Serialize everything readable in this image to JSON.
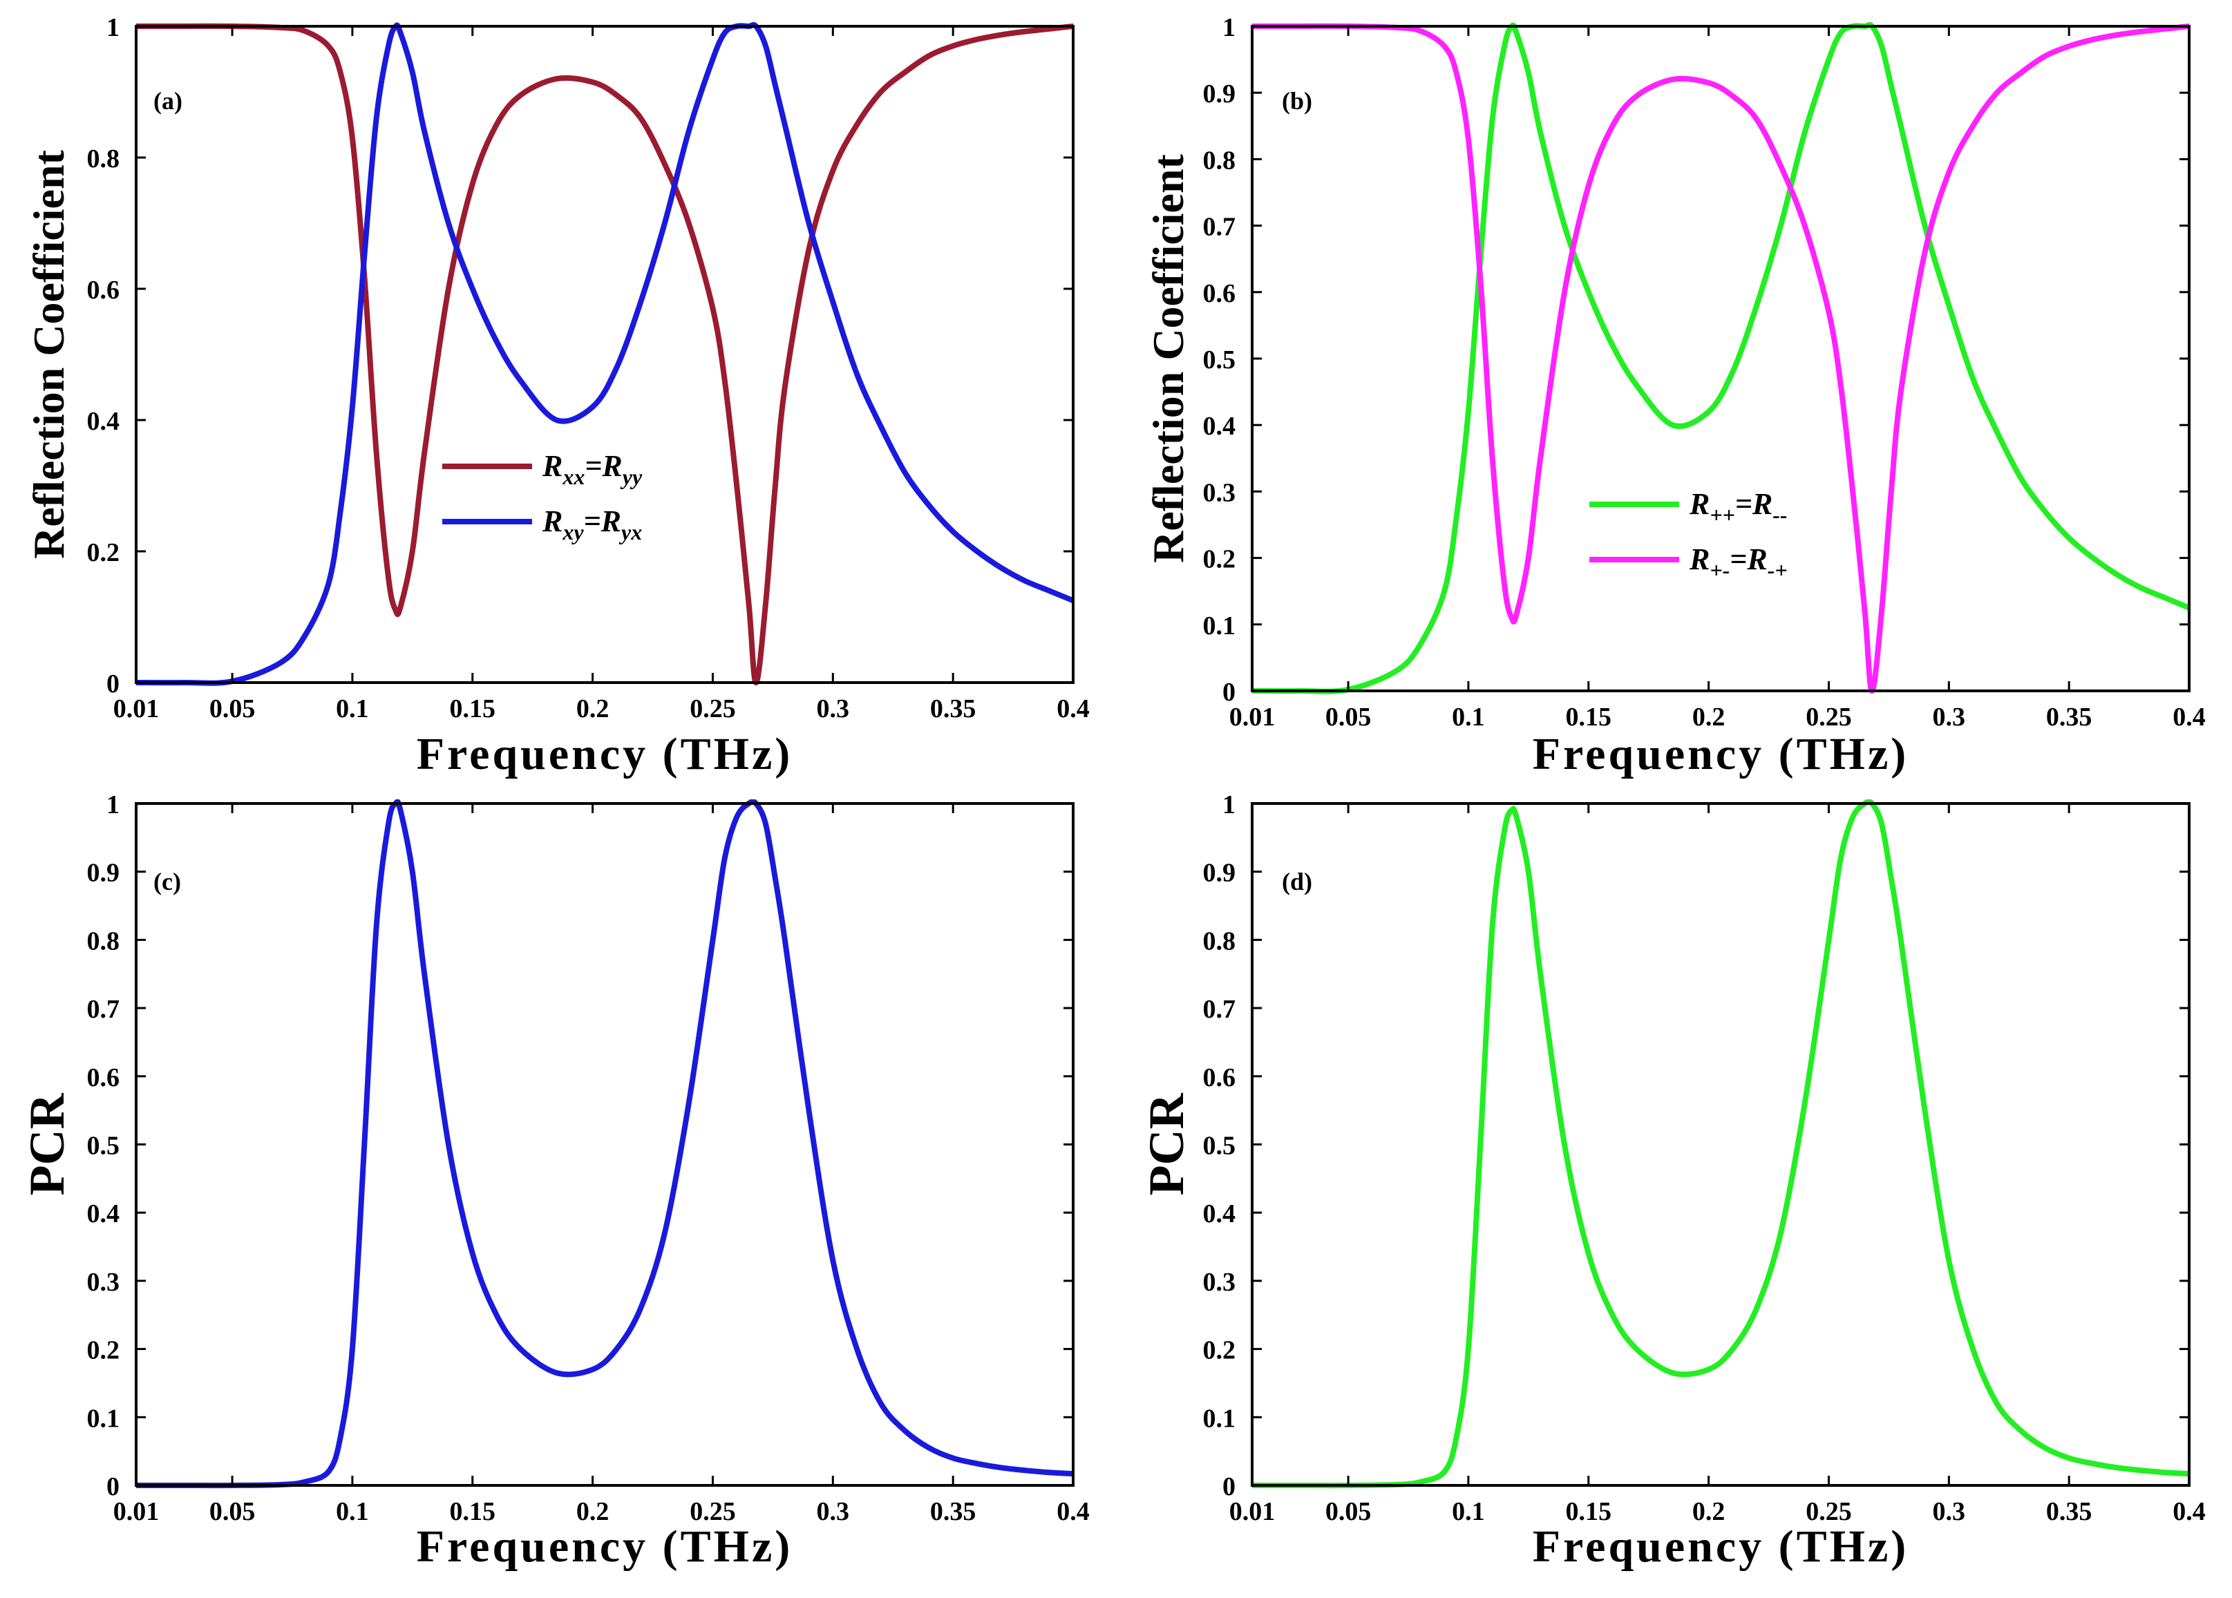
{
  "figure": {
    "panels": [
      {
        "id": "a",
        "label": "(a)",
        "ylabel": "Reflection Coefficient",
        "xlabel": "Frequency (THz)"
      },
      {
        "id": "b",
        "label": "(b)",
        "ylabel": "Reflection Coefficient",
        "xlabel": "Frequency (THz)"
      },
      {
        "id": "c",
        "label": "(c)",
        "ylabel": "PCR",
        "xlabel": "Frequency (THz)"
      },
      {
        "id": "d",
        "label": "(d)",
        "ylabel": "PCR",
        "xlabel": "Frequency (THz)"
      }
    ]
  },
  "chart_data": [
    {
      "panel": "a",
      "type": "line",
      "title": "",
      "label": "(a)",
      "xlabel": "Frequency (THz)",
      "ylabel": "Reflection Coefficient",
      "xlim": [
        0.01,
        0.4
      ],
      "ylim": [
        0,
        1
      ],
      "xticks": [
        0.01,
        0.05,
        0.1,
        0.15,
        0.2,
        0.25,
        0.3,
        0.35,
        0.4
      ],
      "xtick_labels": [
        "0.01",
        "0.05",
        "0.1",
        "0.15",
        "0.2",
        "0.25",
        "0.3",
        "0.35",
        "0.4"
      ],
      "yticks": [
        0,
        0.2,
        0.4,
        0.6,
        0.8,
        1
      ],
      "ytick_labels": [
        "0",
        "0.2",
        "0.4",
        "0.6",
        "0.8",
        "1"
      ],
      "grid": false,
      "legend_position": "center",
      "x": [
        0.01,
        0.03,
        0.05,
        0.07,
        0.08,
        0.09,
        0.095,
        0.1,
        0.105,
        0.11,
        0.115,
        0.118,
        0.12,
        0.125,
        0.13,
        0.14,
        0.15,
        0.16,
        0.17,
        0.185,
        0.2,
        0.21,
        0.22,
        0.23,
        0.24,
        0.25,
        0.255,
        0.26,
        0.265,
        0.268,
        0.272,
        0.276,
        0.28,
        0.29,
        0.3,
        0.31,
        0.32,
        0.33,
        0.34,
        0.35,
        0.36,
        0.37,
        0.38,
        0.39,
        0.4
      ],
      "series": [
        {
          "name": "R_xx=R_yy",
          "legend_main": [
            "R",
            "=R",
            ""
          ],
          "legend_sub": [
            "xx",
            "yy"
          ],
          "color": "#9b1b30",
          "values": [
            1.0,
            1.0,
            1.0,
            0.998,
            0.993,
            0.97,
            0.93,
            0.83,
            0.62,
            0.35,
            0.16,
            0.11,
            0.115,
            0.2,
            0.35,
            0.6,
            0.76,
            0.85,
            0.895,
            0.92,
            0.915,
            0.895,
            0.86,
            0.79,
            0.7,
            0.57,
            0.46,
            0.3,
            0.12,
            0.0,
            0.12,
            0.3,
            0.45,
            0.66,
            0.78,
            0.85,
            0.9,
            0.93,
            0.955,
            0.97,
            0.98,
            0.987,
            0.992,
            0.996,
            1.0
          ]
        },
        {
          "name": "R_xy=R_yx",
          "legend_main": [
            "R",
            "=R",
            ""
          ],
          "legend_sub": [
            "xy",
            "yx"
          ],
          "color": "#1a1adc",
          "values": [
            0.0,
            0.0,
            0.002,
            0.03,
            0.07,
            0.15,
            0.26,
            0.42,
            0.65,
            0.86,
            0.97,
            1.0,
            0.99,
            0.93,
            0.84,
            0.7,
            0.6,
            0.52,
            0.46,
            0.4,
            0.42,
            0.48,
            0.58,
            0.7,
            0.84,
            0.95,
            0.99,
            1.0,
            1.0,
            1.0,
            0.97,
            0.91,
            0.85,
            0.7,
            0.58,
            0.47,
            0.39,
            0.32,
            0.27,
            0.23,
            0.2,
            0.175,
            0.155,
            0.14,
            0.125
          ]
        }
      ]
    },
    {
      "panel": "b",
      "type": "line",
      "title": "",
      "label": "(b)",
      "xlabel": "Frequency (THz)",
      "ylabel": "Reflection Coefficient",
      "xlim": [
        0.01,
        0.4
      ],
      "ylim": [
        0,
        1
      ],
      "xticks": [
        0.01,
        0.05,
        0.1,
        0.15,
        0.2,
        0.25,
        0.3,
        0.35,
        0.4
      ],
      "xtick_labels": [
        "0.01",
        "0.05",
        "0.1",
        "0.15",
        "0.2",
        "0.25",
        "0.3",
        "0.35",
        "0.4"
      ],
      "yticks": [
        0,
        0.1,
        0.2,
        0.3,
        0.4,
        0.5,
        0.6,
        0.7,
        0.8,
        0.9,
        1
      ],
      "ytick_labels": [
        "0",
        "0.1",
        "0.2",
        "0.3",
        "0.4",
        "0.5",
        "0.6",
        "0.7",
        "0.8",
        "0.9",
        "1"
      ],
      "grid": false,
      "legend_position": "center",
      "x": [
        0.01,
        0.03,
        0.05,
        0.07,
        0.08,
        0.09,
        0.095,
        0.1,
        0.105,
        0.11,
        0.115,
        0.118,
        0.12,
        0.125,
        0.13,
        0.14,
        0.15,
        0.16,
        0.17,
        0.185,
        0.2,
        0.21,
        0.22,
        0.23,
        0.24,
        0.25,
        0.255,
        0.26,
        0.265,
        0.268,
        0.272,
        0.276,
        0.28,
        0.29,
        0.3,
        0.31,
        0.32,
        0.33,
        0.34,
        0.35,
        0.36,
        0.37,
        0.38,
        0.39,
        0.4
      ],
      "series": [
        {
          "name": "R_++=R_--",
          "legend_main": [
            "R",
            "=R",
            ""
          ],
          "legend_sub": [
            "++",
            "--"
          ],
          "color": "#22ee22",
          "values": [
            0.0,
            0.0,
            0.002,
            0.03,
            0.07,
            0.15,
            0.26,
            0.42,
            0.65,
            0.86,
            0.97,
            1.0,
            0.99,
            0.93,
            0.84,
            0.7,
            0.6,
            0.52,
            0.46,
            0.4,
            0.42,
            0.48,
            0.58,
            0.7,
            0.84,
            0.95,
            0.99,
            1.0,
            1.0,
            1.0,
            0.97,
            0.91,
            0.85,
            0.7,
            0.58,
            0.47,
            0.39,
            0.32,
            0.27,
            0.23,
            0.2,
            0.175,
            0.155,
            0.14,
            0.125
          ]
        },
        {
          "name": "R_+-=R_-+",
          "legend_main": [
            "R",
            "=R",
            ""
          ],
          "legend_sub": [
            "+-",
            "-+"
          ],
          "color": "#ff22ff",
          "values": [
            1.0,
            1.0,
            1.0,
            0.998,
            0.993,
            0.97,
            0.93,
            0.83,
            0.62,
            0.35,
            0.16,
            0.11,
            0.115,
            0.2,
            0.35,
            0.6,
            0.76,
            0.85,
            0.895,
            0.92,
            0.915,
            0.895,
            0.86,
            0.79,
            0.7,
            0.57,
            0.46,
            0.3,
            0.12,
            0.0,
            0.12,
            0.3,
            0.45,
            0.66,
            0.78,
            0.85,
            0.9,
            0.93,
            0.955,
            0.97,
            0.98,
            0.987,
            0.992,
            0.996,
            1.0
          ]
        }
      ]
    },
    {
      "panel": "c",
      "type": "line",
      "title": "",
      "label": "(c)",
      "xlabel": "Frequency (THz)",
      "ylabel": "PCR",
      "xlim": [
        0.01,
        0.4
      ],
      "ylim": [
        0,
        1
      ],
      "xticks": [
        0.01,
        0.05,
        0.1,
        0.15,
        0.2,
        0.25,
        0.3,
        0.35,
        0.4
      ],
      "xtick_labels": [
        "0.01",
        "0.05",
        "0.1",
        "0.15",
        "0.2",
        "0.25",
        "0.3",
        "0.35",
        "0.4"
      ],
      "yticks": [
        0,
        0.1,
        0.2,
        0.3,
        0.4,
        0.5,
        0.6,
        0.7,
        0.8,
        0.9,
        1
      ],
      "ytick_labels": [
        "0",
        "0.1",
        "0.2",
        "0.3",
        "0.4",
        "0.5",
        "0.6",
        "0.7",
        "0.8",
        "0.9",
        "1"
      ],
      "grid": false,
      "x": [
        0.01,
        0.03,
        0.05,
        0.07,
        0.08,
        0.09,
        0.095,
        0.1,
        0.105,
        0.11,
        0.115,
        0.118,
        0.12,
        0.125,
        0.13,
        0.14,
        0.15,
        0.16,
        0.17,
        0.185,
        0.2,
        0.21,
        0.22,
        0.23,
        0.24,
        0.25,
        0.255,
        0.26,
        0.265,
        0.268,
        0.272,
        0.276,
        0.28,
        0.29,
        0.3,
        0.31,
        0.32,
        0.33,
        0.34,
        0.35,
        0.36,
        0.37,
        0.38,
        0.39,
        0.4
      ],
      "series": [
        {
          "name": "PCR",
          "color": "#1a1adc",
          "values": [
            0.0,
            0.0,
            0.0,
            0.001,
            0.005,
            0.02,
            0.07,
            0.2,
            0.5,
            0.82,
            0.97,
            1.0,
            0.99,
            0.9,
            0.75,
            0.5,
            0.34,
            0.25,
            0.2,
            0.165,
            0.17,
            0.2,
            0.26,
            0.37,
            0.56,
            0.8,
            0.92,
            0.98,
            1.0,
            1.0,
            0.97,
            0.89,
            0.8,
            0.55,
            0.33,
            0.2,
            0.12,
            0.08,
            0.055,
            0.04,
            0.032,
            0.026,
            0.022,
            0.019,
            0.017
          ]
        }
      ]
    },
    {
      "panel": "d",
      "type": "line",
      "title": "",
      "label": "(d)",
      "xlabel": "Frequency (THz)",
      "ylabel": "PCR",
      "xlim": [
        0.01,
        0.4
      ],
      "ylim": [
        0,
        1
      ],
      "xticks": [
        0.01,
        0.05,
        0.1,
        0.15,
        0.2,
        0.25,
        0.3,
        0.35,
        0.4
      ],
      "xtick_labels": [
        "0.01",
        "0.05",
        "0.1",
        "0.15",
        "0.2",
        "0.25",
        "0.3",
        "0.35",
        "0.4"
      ],
      "yticks": [
        0,
        0.1,
        0.2,
        0.3,
        0.4,
        0.5,
        0.6,
        0.7,
        0.8,
        0.9,
        1
      ],
      "ytick_labels": [
        "0",
        "0.1",
        "0.2",
        "0.3",
        "0.4",
        "0.5",
        "0.6",
        "0.7",
        "0.8",
        "0.9",
        "1"
      ],
      "grid": false,
      "x": [
        0.01,
        0.03,
        0.05,
        0.07,
        0.08,
        0.09,
        0.095,
        0.1,
        0.105,
        0.11,
        0.115,
        0.118,
        0.12,
        0.125,
        0.13,
        0.14,
        0.15,
        0.16,
        0.17,
        0.185,
        0.2,
        0.21,
        0.22,
        0.23,
        0.24,
        0.25,
        0.255,
        0.26,
        0.265,
        0.268,
        0.272,
        0.276,
        0.28,
        0.29,
        0.3,
        0.31,
        0.32,
        0.33,
        0.34,
        0.35,
        0.36,
        0.37,
        0.38,
        0.39,
        0.4
      ],
      "series": [
        {
          "name": "PCR",
          "color": "#22ee22",
          "values": [
            0.0,
            0.0,
            0.0,
            0.001,
            0.005,
            0.02,
            0.07,
            0.2,
            0.5,
            0.82,
            0.96,
            0.99,
            0.98,
            0.9,
            0.75,
            0.5,
            0.34,
            0.25,
            0.2,
            0.165,
            0.17,
            0.2,
            0.26,
            0.37,
            0.56,
            0.8,
            0.92,
            0.98,
            1.0,
            1.0,
            0.97,
            0.89,
            0.8,
            0.55,
            0.33,
            0.2,
            0.12,
            0.08,
            0.055,
            0.04,
            0.032,
            0.026,
            0.022,
            0.019,
            0.017
          ]
        }
      ]
    }
  ]
}
